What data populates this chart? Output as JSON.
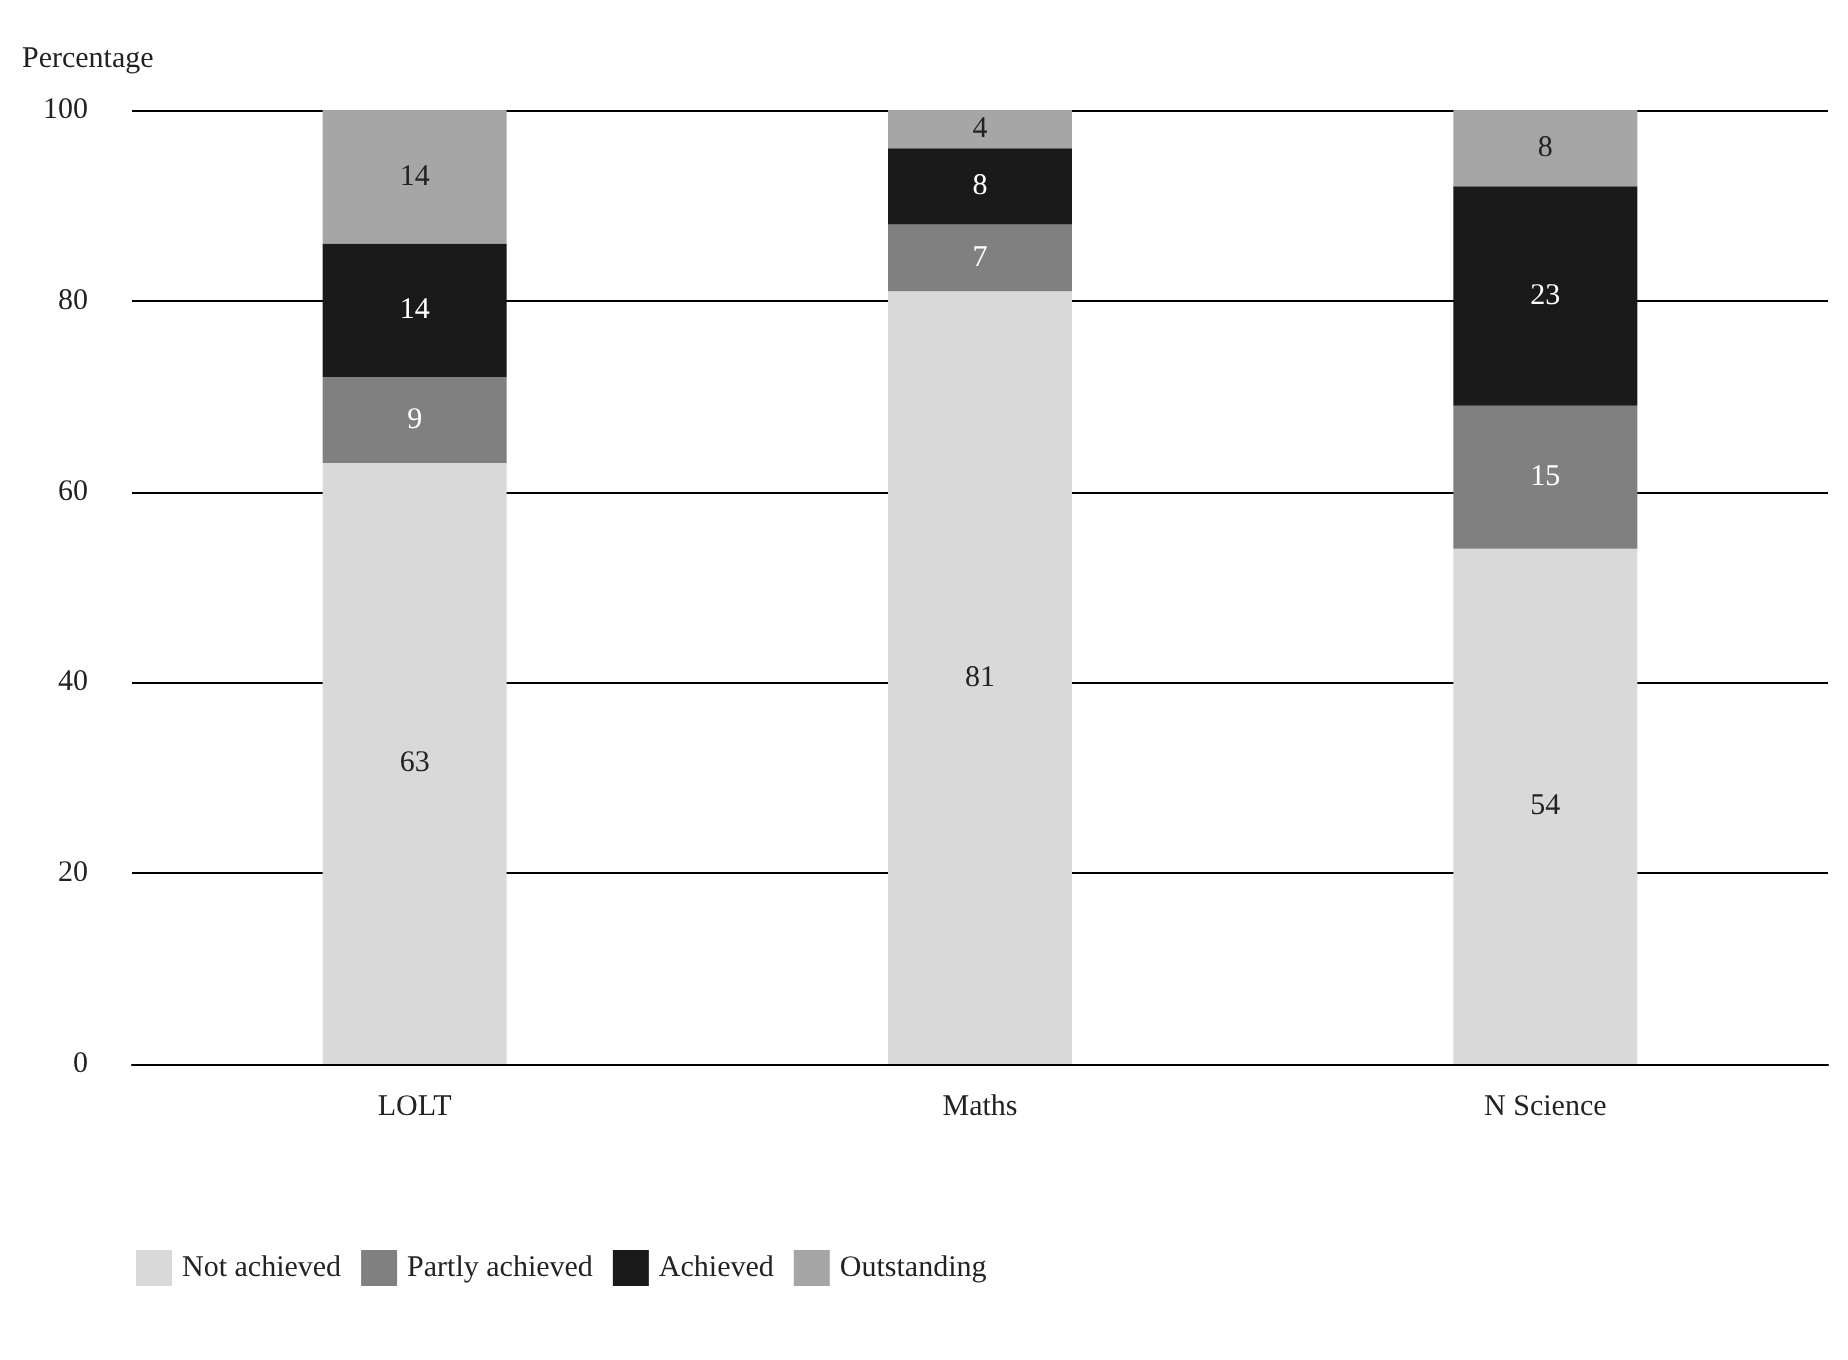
{
  "chart_data": {
    "type": "bar",
    "ylabel": "Percentage",
    "categories": [
      "LOLT",
      "Maths",
      "N Science"
    ],
    "stacked": true,
    "data_labels": true,
    "grid": "y",
    "legend": "bottom",
    "ylim": [
      0,
      100
    ],
    "yticks": [
      0,
      20,
      40,
      60,
      80,
      100
    ],
    "series": [
      {
        "name": "Not achieved",
        "color": "#d9d9d9",
        "values": [
          63,
          81,
          54
        ]
      },
      {
        "name": "Partly achieved",
        "color": "#808080",
        "values": [
          9,
          7,
          15
        ]
      },
      {
        "name": "Achieved",
        "color": "#1a1a1a",
        "values": [
          14,
          8,
          23
        ]
      },
      {
        "name": "Outstanding",
        "color": "#a6a6a6",
        "values": [
          14,
          4,
          8
        ]
      }
    ]
  }
}
